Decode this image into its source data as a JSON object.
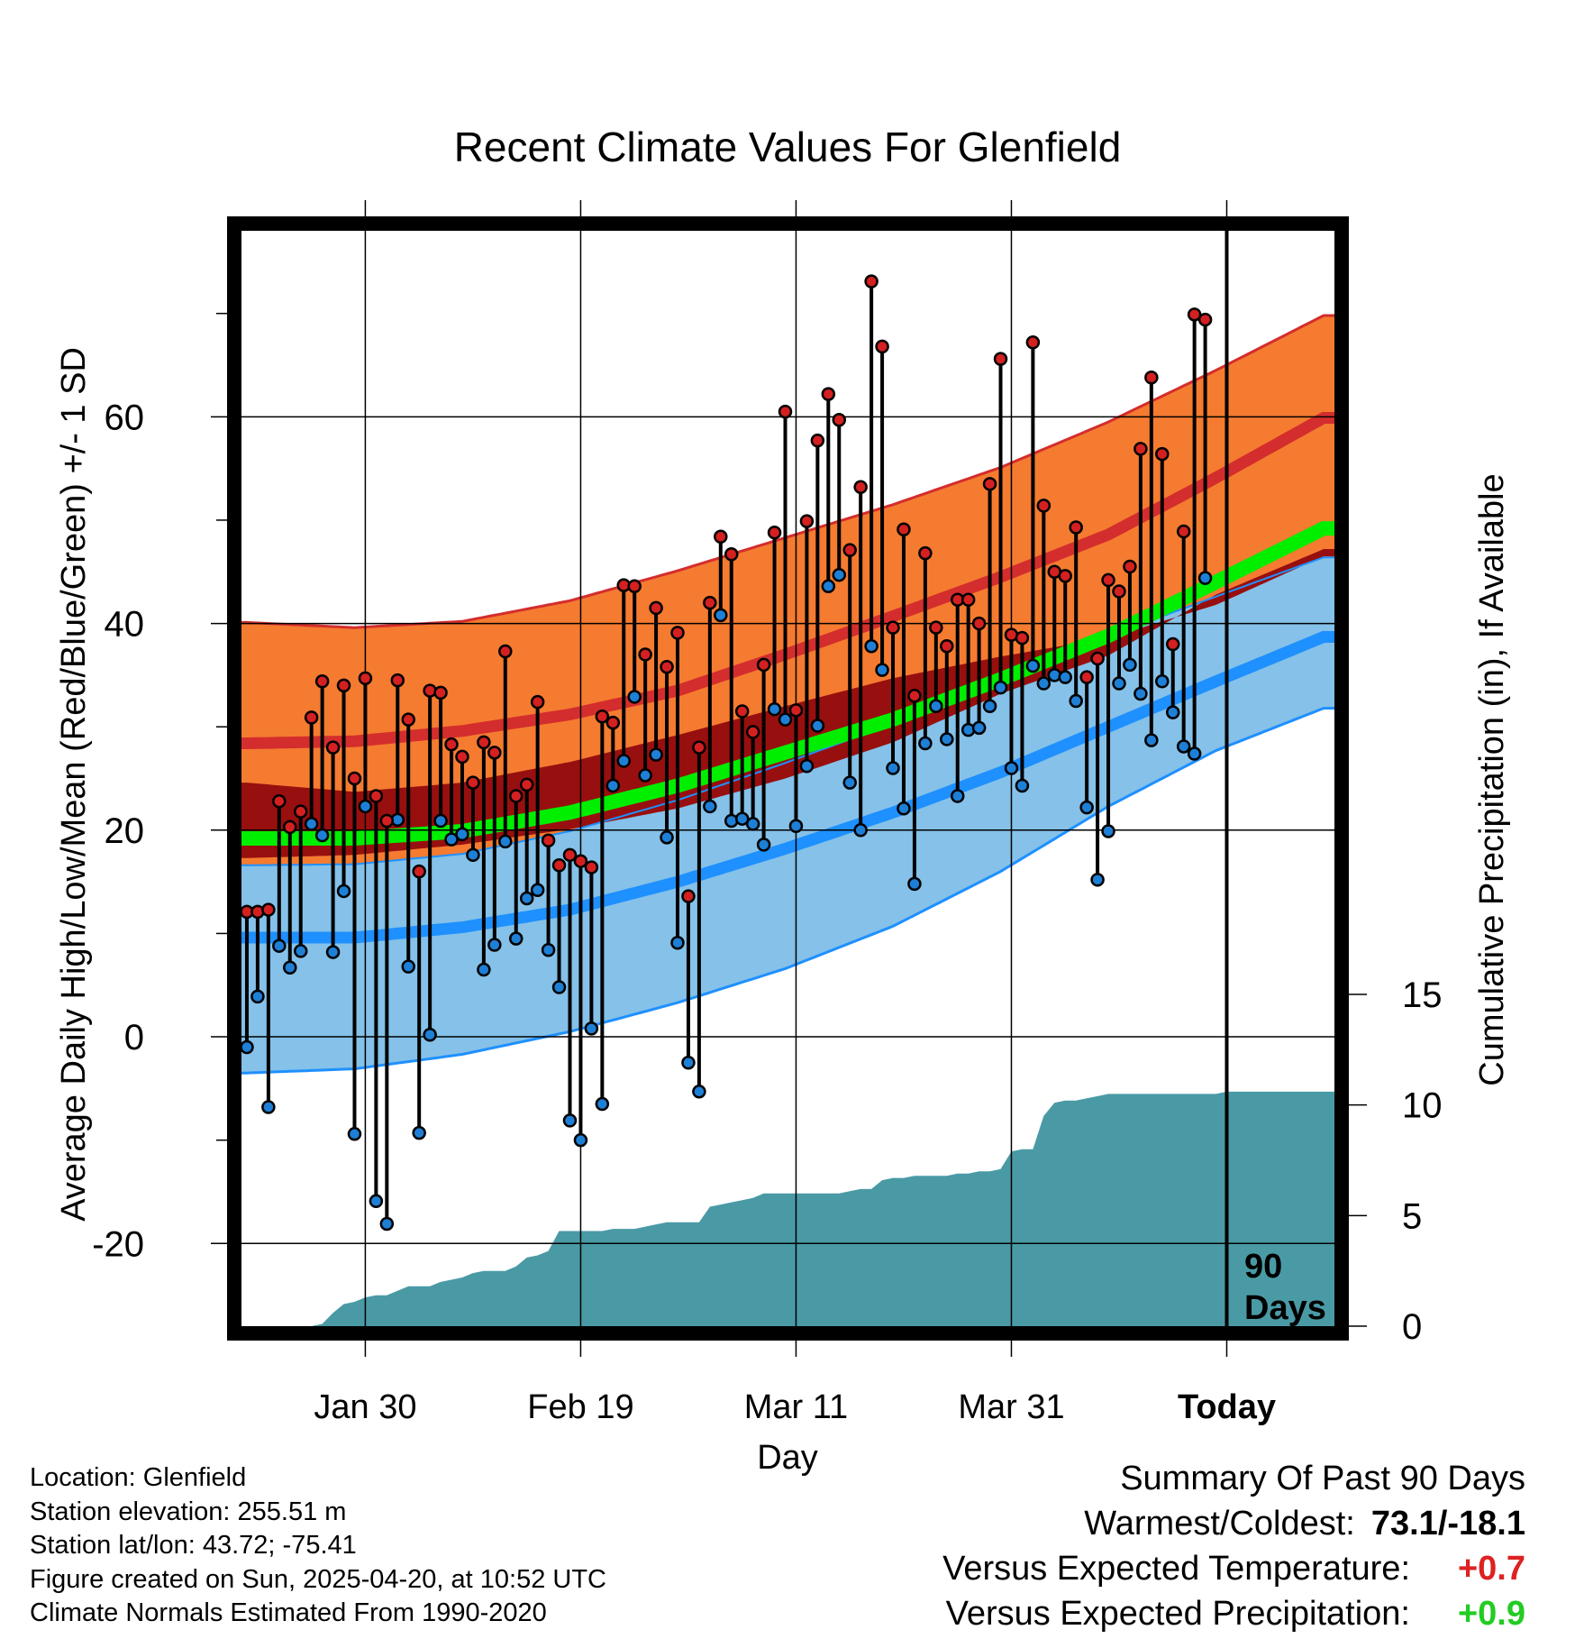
{
  "title": "Recent Climate Values For Glenfield",
  "xlabel": "Day",
  "ylabel_left": "Average Daily High/Low/Mean (Red/Blue/Green) +/- 1 SD",
  "ylabel_right": "Cumulative Precipitation (in), If Available",
  "marker_label_line1": "90",
  "marker_label_line2": "Days",
  "info": {
    "location": "Location: Glenfield",
    "elevation": "Station elevation: 255.51 m",
    "latlon": "Station lat/lon: 43.72; -75.41",
    "created": "Figure created on Sun, 2025-04-20, at 10:52 UTC",
    "normals": "Climate Normals Estimated From 1990-2020"
  },
  "summary": {
    "heading": "Summary Of Past 90 Days",
    "warmest_coldest_label": "Warmest/Coldest:",
    "warmest_coldest_value": "73.1/-18.1",
    "temp_label": "Versus Expected Temperature:",
    "temp_value": "+0.7",
    "temp_color": "#dd2222",
    "precip_label": "Versus Expected Precipitation:",
    "precip_value": "+0.9",
    "precip_color": "#22cc22"
  },
  "chart_data": {
    "type": "line",
    "x_tick_labels": [
      "Jan 30",
      "Feb 19",
      "Mar 11",
      "Mar 31",
      "Today"
    ],
    "x_tick_days": [
      11,
      31,
      51,
      71,
      91
    ],
    "x_range": [
      -0.5,
      101
    ],
    "today_day": 91,
    "y_left_ticks": [
      -20,
      0,
      20,
      40,
      60
    ],
    "y_left_range": [
      -28,
      78
    ],
    "y_right_ticks": [
      0,
      5,
      10,
      15
    ],
    "y_right_range": [
      0,
      15
    ],
    "grid": true,
    "colors": {
      "high_band": "#f47b30",
      "high_line": "#d42d2d",
      "low_band": "#85c1e8",
      "low_line": "#1e90ff",
      "mean_band": "#980f0f",
      "mean_line": "#00ee00",
      "precip": "#4a9aa6",
      "high_marker": "#d42020",
      "low_marker": "#1e7fd6"
    },
    "normals": {
      "day": [
        0,
        10,
        20,
        30,
        40,
        50,
        60,
        70,
        80,
        90,
        100
      ],
      "high_mean": [
        28.4,
        28.6,
        29.6,
        31.2,
        33.5,
        37.0,
        40.7,
        44.5,
        48.6,
        54.1,
        59.9
      ],
      "high_upper": [
        40.1,
        39.6,
        40.2,
        42.2,
        45.1,
        48.3,
        51.5,
        55.1,
        59.5,
        64.5,
        69.8
      ],
      "mean_mean": [
        19.2,
        19.2,
        19.9,
        21.7,
        24.3,
        27.5,
        30.7,
        34.6,
        38.8,
        44.0,
        49.2
      ],
      "low_mean": [
        9.6,
        9.6,
        10.6,
        12.3,
        15.0,
        18.2,
        21.7,
        25.6,
        30.0,
        34.4,
        38.7
      ],
      "low_upper": [
        16.6,
        16.7,
        17.7,
        19.9,
        22.9,
        26.5,
        30.3,
        34.8,
        38.8,
        42.6,
        46.4
      ],
      "low_lower": [
        -3.5,
        -3.1,
        -1.7,
        0.5,
        3.3,
        6.6,
        10.7,
        16.0,
        22.3,
        27.7,
        31.8
      ],
      "mean_upper": [
        24.6,
        23.7,
        24.6,
        26.6,
        29.2,
        32.0,
        34.7,
        36.8,
        38.6,
        41.8,
        46.5
      ],
      "mean_lower": [
        17.3,
        17.6,
        18.6,
        20.1,
        22.1,
        25.0,
        28.5,
        33.2,
        36.9,
        42.8,
        47.2
      ]
    },
    "daily_high": [
      12.1,
      12.1,
      12.3,
      22.8,
      20.3,
      21.8,
      30.9,
      34.4,
      28.0,
      34.0,
      25.0,
      34.7,
      23.3,
      20.9,
      34.5,
      30.7,
      16.0,
      33.5,
      33.3,
      28.3,
      27.1,
      24.6,
      28.5,
      27.5,
      37.3,
      23.3,
      24.4,
      32.4,
      19.0,
      16.6,
      17.6,
      17.0,
      16.4,
      31.0,
      30.4,
      43.7,
      43.6,
      37.0,
      41.5,
      35.8,
      39.1,
      13.6,
      28.0,
      42.0,
      48.4,
      46.7,
      31.5,
      29.5,
      36.0,
      48.8,
      60.5,
      31.6,
      49.9,
      57.7,
      62.2,
      59.7,
      47.1,
      53.2,
      73.1,
      66.8,
      39.6,
      49.1,
      33.0,
      46.8,
      39.6,
      37.8,
      42.3,
      42.3,
      40.0,
      53.5,
      65.6,
      38.9,
      38.6,
      67.2,
      51.4,
      45.0,
      44.6,
      49.3,
      34.8,
      36.6,
      44.2,
      43.1,
      45.5,
      56.9,
      63.8,
      56.4,
      38.0,
      48.9,
      69.9,
      69.4
    ],
    "daily_low": [
      -1.0,
      3.9,
      -6.8,
      8.8,
      6.7,
      8.3,
      20.6,
      19.5,
      8.2,
      14.1,
      -9.4,
      22.3,
      -15.9,
      -18.1,
      21.0,
      6.8,
      -9.3,
      0.2,
      20.9,
      19.1,
      19.6,
      17.6,
      6.5,
      8.9,
      18.9,
      9.5,
      13.4,
      14.2,
      8.4,
      4.8,
      -8.1,
      -10.0,
      0.8,
      -6.5,
      24.3,
      26.7,
      32.9,
      25.3,
      27.3,
      19.3,
      9.1,
      -2.5,
      -5.3,
      22.3,
      40.8,
      20.9,
      21.1,
      20.6,
      18.6,
      31.7,
      30.7,
      20.4,
      26.2,
      30.1,
      43.6,
      44.7,
      24.6,
      20.0,
      37.8,
      35.5,
      26.0,
      22.1,
      14.8,
      28.4,
      32.0,
      28.8,
      23.3,
      29.7,
      29.9,
      32.0,
      33.8,
      26.0,
      24.3,
      35.9,
      34.2,
      35.0,
      34.8,
      32.5,
      22.2,
      15.2,
      19.9,
      34.2,
      36.0,
      33.2,
      28.7,
      34.4,
      31.4,
      28.1,
      27.4,
      44.4
    ],
    "precip_cumulative": {
      "day": [
        0,
        6,
        7,
        8,
        9,
        10,
        11,
        12,
        13,
        14,
        15,
        16,
        17,
        18,
        19,
        20,
        21,
        22,
        23,
        24,
        25,
        26,
        27,
        28,
        29,
        30,
        31,
        32,
        33,
        34,
        35,
        36,
        37,
        38,
        39,
        40,
        41,
        42,
        43,
        44,
        45,
        46,
        47,
        48,
        49,
        50,
        51,
        52,
        53,
        54,
        55,
        56,
        57,
        58,
        59,
        60,
        61,
        62,
        63,
        64,
        65,
        66,
        67,
        68,
        69,
        70,
        71,
        72,
        73,
        74,
        75,
        76,
        77,
        78,
        79,
        80,
        81,
        82,
        83,
        84,
        85,
        86,
        87,
        88,
        89,
        90,
        91,
        101
      ],
      "value": [
        0.0,
        0.0,
        0.1,
        0.6,
        1.0,
        1.1,
        1.3,
        1.4,
        1.4,
        1.6,
        1.8,
        1.8,
        1.8,
        2.0,
        2.1,
        2.2,
        2.4,
        2.5,
        2.5,
        2.5,
        2.7,
        3.1,
        3.2,
        3.4,
        4.3,
        4.3,
        4.3,
        4.3,
        4.3,
        4.4,
        4.4,
        4.4,
        4.5,
        4.6,
        4.7,
        4.7,
        4.7,
        4.7,
        5.4,
        5.5,
        5.6,
        5.7,
        5.8,
        6.0,
        6.0,
        6.0,
        6.0,
        6.0,
        6.0,
        6.0,
        6.0,
        6.1,
        6.2,
        6.2,
        6.6,
        6.7,
        6.7,
        6.8,
        6.8,
        6.8,
        6.8,
        6.9,
        6.9,
        7.0,
        7.0,
        7.1,
        7.9,
        8.0,
        8.0,
        9.5,
        10.1,
        10.2,
        10.2,
        10.3,
        10.4,
        10.5,
        10.5,
        10.5,
        10.5,
        10.5,
        10.5,
        10.5,
        10.5,
        10.5,
        10.5,
        10.5,
        10.6,
        10.6
      ]
    }
  }
}
